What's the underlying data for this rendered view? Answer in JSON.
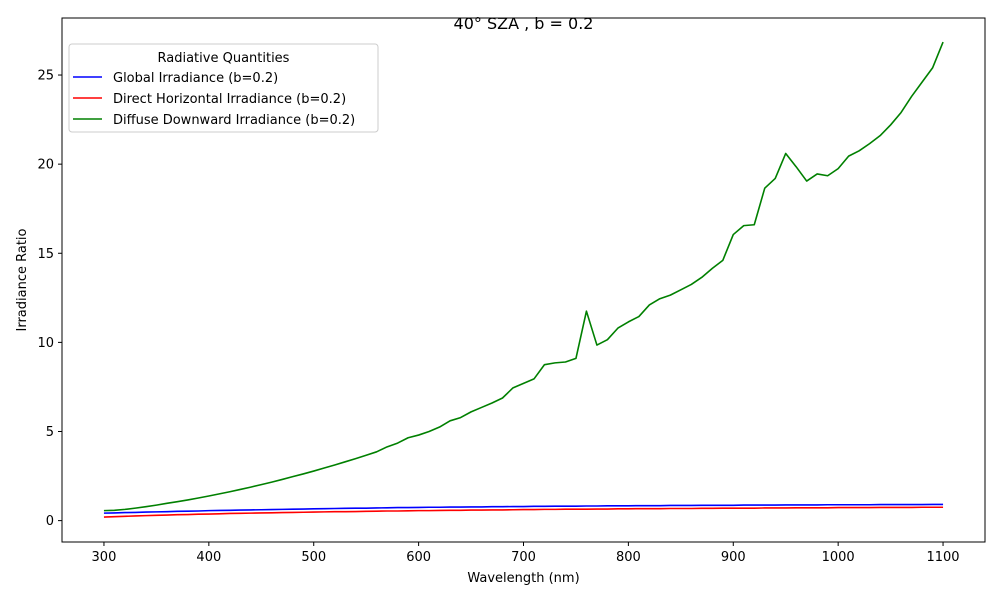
{
  "chart_data": {
    "type": "line",
    "title": "40° SZA , b = 0.2",
    "xlabel": "Wavelength (nm)",
    "ylabel": "Irradiance Ratio",
    "xlim": [
      260,
      1140
    ],
    "ylim": [
      -1.2,
      28.2
    ],
    "xticks": [
      300,
      400,
      500,
      600,
      700,
      800,
      900,
      1000,
      1100
    ],
    "yticks": [
      0,
      5,
      10,
      15,
      20,
      25
    ],
    "grid": false,
    "legend": {
      "title": "Radiative Quantities",
      "placement": "top-left"
    },
    "x": [
      300,
      310,
      320,
      330,
      340,
      350,
      360,
      370,
      380,
      390,
      400,
      410,
      420,
      430,
      440,
      450,
      460,
      470,
      480,
      490,
      500,
      510,
      520,
      530,
      540,
      550,
      560,
      570,
      580,
      590,
      600,
      610,
      620,
      630,
      640,
      650,
      660,
      670,
      680,
      690,
      700,
      710,
      720,
      730,
      740,
      750,
      760,
      770,
      780,
      790,
      800,
      810,
      820,
      830,
      840,
      850,
      860,
      870,
      880,
      890,
      900,
      910,
      920,
      930,
      940,
      950,
      960,
      970,
      980,
      990,
      1000,
      1010,
      1020,
      1030,
      1040,
      1050,
      1060,
      1070,
      1080,
      1090,
      1100
    ],
    "series": [
      {
        "name": "Global Irradiance (b=0.2)",
        "color": "#0000ff",
        "values": [
          0.42,
          0.43,
          0.45,
          0.46,
          0.48,
          0.49,
          0.5,
          0.52,
          0.53,
          0.54,
          0.56,
          0.57,
          0.58,
          0.59,
          0.6,
          0.61,
          0.62,
          0.63,
          0.64,
          0.65,
          0.66,
          0.67,
          0.68,
          0.69,
          0.7,
          0.7,
          0.71,
          0.72,
          0.73,
          0.73,
          0.74,
          0.75,
          0.75,
          0.76,
          0.76,
          0.77,
          0.77,
          0.78,
          0.78,
          0.79,
          0.79,
          0.8,
          0.8,
          0.81,
          0.81,
          0.81,
          0.82,
          0.82,
          0.83,
          0.83,
          0.83,
          0.84,
          0.84,
          0.84,
          0.85,
          0.85,
          0.85,
          0.86,
          0.86,
          0.86,
          0.86,
          0.87,
          0.87,
          0.87,
          0.87,
          0.88,
          0.88,
          0.88,
          0.88,
          0.89,
          0.89,
          0.89,
          0.89,
          0.89,
          0.9,
          0.9,
          0.9,
          0.9,
          0.9,
          0.91,
          0.91
        ]
      },
      {
        "name": "Direct Horizontal Irradiance (b=0.2)",
        "color": "#ff0000",
        "values": [
          0.2,
          0.22,
          0.24,
          0.26,
          0.28,
          0.3,
          0.31,
          0.33,
          0.34,
          0.36,
          0.37,
          0.38,
          0.4,
          0.41,
          0.42,
          0.43,
          0.44,
          0.45,
          0.46,
          0.47,
          0.48,
          0.49,
          0.5,
          0.5,
          0.51,
          0.52,
          0.53,
          0.54,
          0.54,
          0.55,
          0.56,
          0.56,
          0.57,
          0.58,
          0.58,
          0.59,
          0.59,
          0.6,
          0.6,
          0.61,
          0.62,
          0.62,
          0.63,
          0.63,
          0.64,
          0.64,
          0.64,
          0.65,
          0.65,
          0.66,
          0.66,
          0.67,
          0.67,
          0.67,
          0.68,
          0.68,
          0.68,
          0.69,
          0.69,
          0.7,
          0.7,
          0.7,
          0.7,
          0.71,
          0.71,
          0.71,
          0.72,
          0.72,
          0.72,
          0.72,
          0.73,
          0.73,
          0.73,
          0.73,
          0.74,
          0.74,
          0.74,
          0.74,
          0.75,
          0.75,
          0.75
        ]
      },
      {
        "name": "Diffuse Downward Irradiance (b=0.2)",
        "color": "#008000",
        "values": [
          0.56,
          0.58,
          0.63,
          0.7,
          0.78,
          0.87,
          0.97,
          1.06,
          1.16,
          1.27,
          1.38,
          1.5,
          1.62,
          1.75,
          1.88,
          2.02,
          2.16,
          2.31,
          2.47,
          2.62,
          2.78,
          2.95,
          3.12,
          3.3,
          3.48,
          3.67,
          3.86,
          4.14,
          4.35,
          4.65,
          4.8,
          5.0,
          5.25,
          5.6,
          5.78,
          6.1,
          6.35,
          6.6,
          6.88,
          7.45,
          7.7,
          7.95,
          8.75,
          8.85,
          8.9,
          9.1,
          11.75,
          9.85,
          10.15,
          10.8,
          11.15,
          11.45,
          12.1,
          12.45,
          12.65,
          12.95,
          13.25,
          13.65,
          14.15,
          14.6,
          16.05,
          16.55,
          16.6,
          18.65,
          19.2,
          20.6,
          19.85,
          19.05,
          19.45,
          19.35,
          19.75,
          20.45,
          20.75,
          21.15,
          21.6,
          22.2,
          22.9,
          23.8,
          24.6,
          25.4,
          26.85
        ]
      }
    ]
  }
}
